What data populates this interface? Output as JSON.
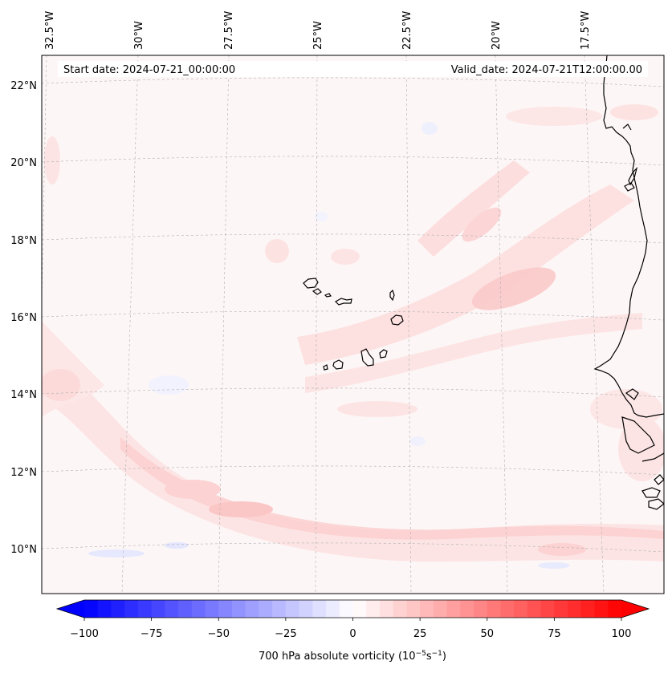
{
  "map": {
    "header": {
      "start_date": "Start date: 2024-07-21_00:00:00",
      "valid_date": "Valid_date: 2024-07-21T12:00:00.00"
    },
    "lon_labels": [
      "32.5°W",
      "30°W",
      "27.5°W",
      "25°W",
      "22.5°W",
      "20°W",
      "17.5°W"
    ],
    "lat_labels": [
      "22°N",
      "20°N",
      "18°N",
      "16°N",
      "14°N",
      "12°N",
      "10°N"
    ],
    "colors": {
      "background": "#fdf6f6",
      "coastline": "#000000",
      "gridline": "#b0b0b0",
      "cmap_negative": "#0000ff",
      "cmap_positive": "#ff0000"
    }
  },
  "colorbar": {
    "ticks": [
      "−100",
      "−75",
      "−50",
      "−25",
      "0",
      "25",
      "50",
      "75",
      "100"
    ],
    "label_prefix": "700 hPa absolute vorticity (10",
    "label_exp1": "−5",
    "label_mid": "s",
    "label_exp2": "−1",
    "label_suffix": ")",
    "vmin": -100,
    "vmax": 100,
    "levels": 40
  }
}
